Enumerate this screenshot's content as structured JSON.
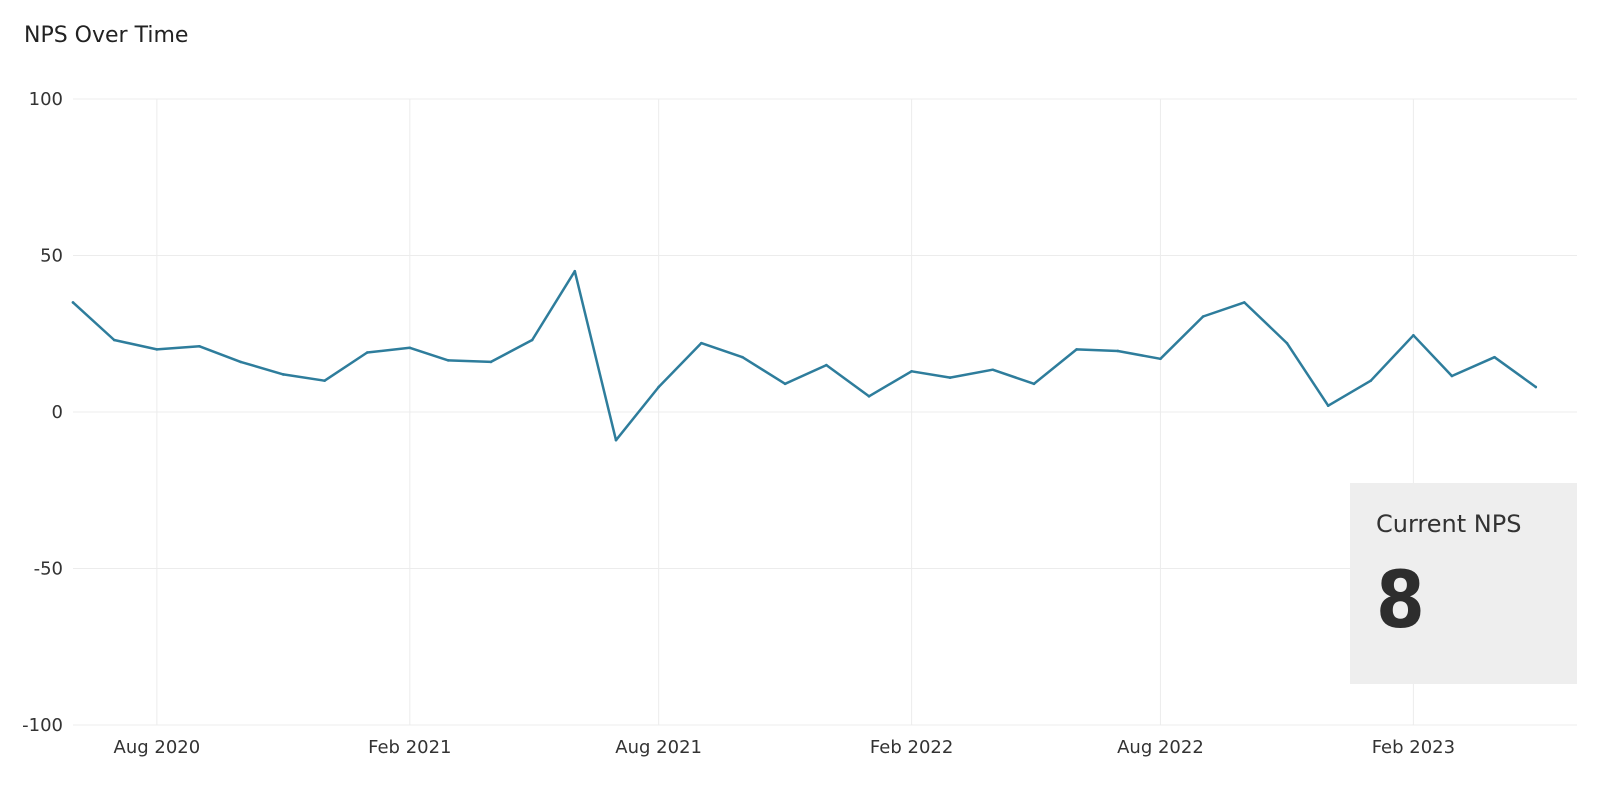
{
  "chart_data": {
    "type": "line",
    "title": "NPS Over Time",
    "xlabel": "",
    "ylabel": "",
    "ylim": [
      -100,
      100
    ],
    "y_ticks": [
      100,
      50,
      0,
      -50,
      -100
    ],
    "x_range": [
      "2020-06-01",
      "2023-05-31"
    ],
    "x_ticks": [
      {
        "date": "2020-08-01",
        "label": "Aug 2020"
      },
      {
        "date": "2021-02-01",
        "label": "Feb 2021"
      },
      {
        "date": "2021-08-01",
        "label": "Aug 2021"
      },
      {
        "date": "2022-02-01",
        "label": "Feb 2022"
      },
      {
        "date": "2022-08-01",
        "label": "Aug 2022"
      },
      {
        "date": "2023-02-01",
        "label": "Feb 2023"
      }
    ],
    "grid": true,
    "colors": {
      "line": "#2e7d9c",
      "grid": "#ececec"
    },
    "series": [
      {
        "points": [
          {
            "x": "2020-06-01",
            "y": 35
          },
          {
            "x": "2020-07-01",
            "y": 23
          },
          {
            "x": "2020-08-01",
            "y": 20
          },
          {
            "x": "2020-09-01",
            "y": 21
          },
          {
            "x": "2020-10-01",
            "y": 16
          },
          {
            "x": "2020-11-01",
            "y": 12
          },
          {
            "x": "2020-12-01",
            "y": 10
          },
          {
            "x": "2021-01-01",
            "y": 19
          },
          {
            "x": "2021-02-01",
            "y": 20.5
          },
          {
            "x": "2021-03-01",
            "y": 16.5
          },
          {
            "x": "2021-04-01",
            "y": 16
          },
          {
            "x": "2021-05-01",
            "y": 23
          },
          {
            "x": "2021-06-01",
            "y": 45
          },
          {
            "x": "2021-07-01",
            "y": -9
          },
          {
            "x": "2021-08-01",
            "y": 8
          },
          {
            "x": "2021-09-01",
            "y": 22
          },
          {
            "x": "2021-10-01",
            "y": 17.5
          },
          {
            "x": "2021-11-01",
            "y": 9
          },
          {
            "x": "2021-12-01",
            "y": 15
          },
          {
            "x": "2022-01-01",
            "y": 5
          },
          {
            "x": "2022-02-01",
            "y": 13
          },
          {
            "x": "2022-03-01",
            "y": 11
          },
          {
            "x": "2022-04-01",
            "y": 13.5
          },
          {
            "x": "2022-05-01",
            "y": 9
          },
          {
            "x": "2022-06-01",
            "y": 20
          },
          {
            "x": "2022-07-01",
            "y": 19.5
          },
          {
            "x": "2022-08-01",
            "y": 17
          },
          {
            "x": "2022-09-01",
            "y": 30.5
          },
          {
            "x": "2022-10-01",
            "y": 35
          },
          {
            "x": "2022-11-01",
            "y": 22
          },
          {
            "x": "2022-12-01",
            "y": 2
          },
          {
            "x": "2023-01-01",
            "y": 10
          },
          {
            "x": "2023-02-01",
            "y": 24.5
          },
          {
            "x": "2023-03-01",
            "y": 11.5
          },
          {
            "x": "2023-04-01",
            "y": 17.5
          },
          {
            "x": "2023-05-01",
            "y": 8
          }
        ]
      }
    ]
  },
  "kpi": {
    "label": "Current NPS",
    "value": "8"
  }
}
